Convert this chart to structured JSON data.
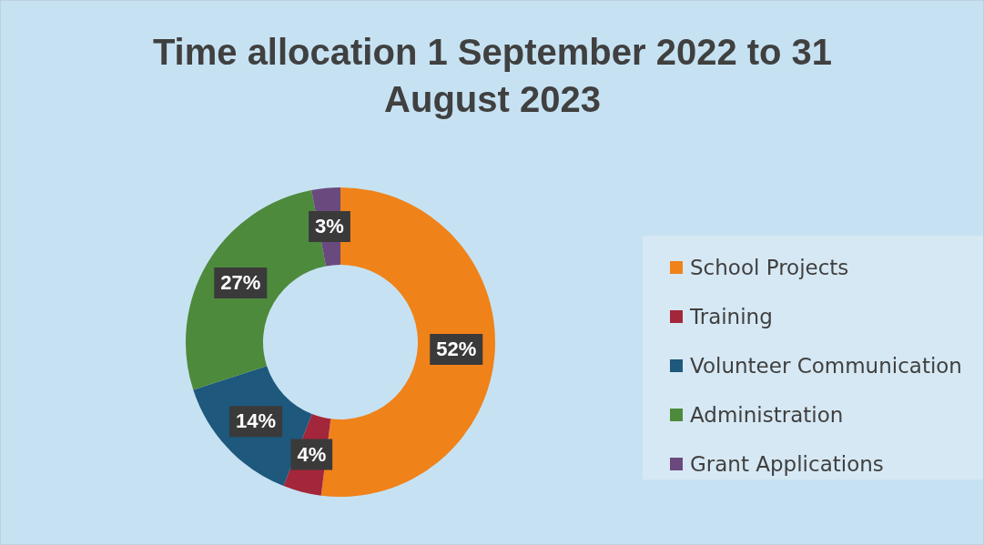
{
  "chart_data": {
    "type": "donut",
    "title": "Time allocation 1 September 2022 to 31 August 2023",
    "categories": [
      "School Projects",
      "Training",
      "Volunteer Communication",
      "Administration",
      "Grant Applications"
    ],
    "values": [
      52,
      4,
      14,
      27,
      3
    ],
    "colors": [
      "#f0821a",
      "#a3263a",
      "#1e587d",
      "#4d8a3c",
      "#6a4a7e"
    ],
    "value_labels": [
      "52%",
      "4%",
      "14%",
      "27%",
      "3%"
    ],
    "legend": "right"
  }
}
